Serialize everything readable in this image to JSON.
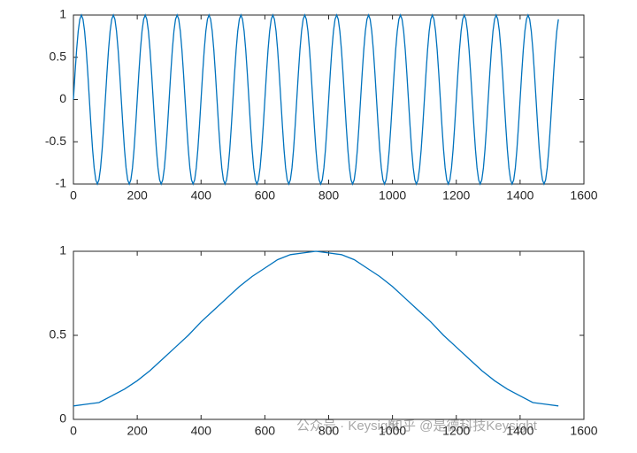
{
  "chart_data": [
    {
      "type": "line",
      "xlim": [
        0,
        1600
      ],
      "ylim": [
        -1,
        1
      ],
      "xticks": [
        0,
        200,
        400,
        600,
        800,
        1000,
        1200,
        1400,
        1600
      ],
      "yticks": [
        -1,
        -0.5,
        0,
        0.5,
        1
      ],
      "color": "#0072bd",
      "x": [
        0,
        5,
        10,
        15,
        20,
        25,
        30,
        35,
        40,
        45,
        50,
        55,
        60,
        65,
        70,
        75,
        80,
        85,
        90,
        95,
        100,
        105,
        110,
        115,
        120,
        125,
        130,
        135,
        140,
        145,
        150,
        155,
        160,
        165,
        170,
        175,
        180,
        185,
        190,
        195,
        200,
        205,
        210,
        215,
        220,
        225,
        230,
        235,
        240,
        245,
        250,
        255,
        260,
        265,
        270,
        275,
        280,
        285,
        290,
        295,
        300,
        305,
        310,
        315,
        320,
        325,
        330,
        335,
        340,
        345,
        350,
        355,
        360,
        365,
        370,
        375,
        380,
        385,
        390,
        395,
        400,
        405,
        410,
        415,
        420,
        425,
        430,
        435,
        440,
        445,
        450,
        455,
        460,
        465,
        470,
        475,
        480,
        485,
        490,
        495,
        500,
        505,
        510,
        515,
        520,
        525,
        530,
        535,
        540,
        545,
        550,
        555,
        560,
        565,
        570,
        575,
        580,
        585,
        590,
        595,
        600,
        605,
        610,
        615,
        620,
        625,
        630,
        635,
        640,
        645,
        650,
        655,
        660,
        665,
        670,
        675,
        680,
        685,
        690,
        695,
        700,
        705,
        710,
        715,
        720,
        725,
        730,
        735,
        740,
        745,
        750,
        755,
        760,
        765,
        770,
        775,
        780,
        785,
        790,
        795,
        800,
        805,
        810,
        815,
        820,
        825,
        830,
        835,
        840,
        845,
        850,
        855,
        860,
        865,
        870,
        875,
        880,
        885,
        890,
        895,
        900,
        905,
        910,
        915,
        920,
        925,
        930,
        935,
        940,
        945,
        950,
        955,
        960,
        965,
        970,
        975,
        980,
        985,
        990,
        995,
        1000,
        1005,
        1010,
        1015,
        1020,
        1025,
        1030,
        1035,
        1040,
        1045,
        1050,
        1055,
        1060,
        1065,
        1070,
        1075,
        1080,
        1085,
        1090,
        1095,
        1100,
        1105,
        1110,
        1115,
        1120,
        1125,
        1130,
        1135,
        1140,
        1145,
        1150,
        1155,
        1160,
        1165,
        1170,
        1175,
        1180,
        1185,
        1190,
        1195,
        1200,
        1205,
        1210,
        1215,
        1220,
        1225,
        1230,
        1235,
        1240,
        1245,
        1250,
        1255,
        1260,
        1265,
        1270,
        1275,
        1280,
        1285,
        1290,
        1295,
        1300,
        1305,
        1310,
        1315,
        1320,
        1325,
        1330,
        1335,
        1340,
        1345,
        1350,
        1355,
        1360,
        1365,
        1370,
        1375,
        1380,
        1385,
        1390,
        1395,
        1400,
        1405,
        1410,
        1415,
        1420,
        1425,
        1430,
        1435,
        1440,
        1445,
        1450,
        1455,
        1460,
        1465,
        1470,
        1475,
        1480,
        1485,
        1490,
        1495,
        1500,
        1505,
        1510,
        1515,
        1520
      ],
      "series": [
        {
          "values": [
            0,
            0.31,
            0.59,
            0.81,
            0.95,
            1,
            0.95,
            0.81,
            0.59,
            0.31,
            0,
            -0.31,
            -0.59,
            -0.81,
            -0.95,
            -1,
            -0.95,
            -0.81,
            -0.59,
            -0.31,
            0,
            0.31,
            0.59,
            0.81,
            0.95,
            1,
            0.95,
            0.81,
            0.59,
            0.31,
            0,
            -0.31,
            -0.59,
            -0.81,
            -0.95,
            -1,
            -0.95,
            -0.81,
            -0.59,
            -0.31,
            0,
            0.31,
            0.59,
            0.81,
            0.95,
            1,
            0.95,
            0.81,
            0.59,
            0.31,
            0,
            -0.31,
            -0.59,
            -0.81,
            -0.95,
            -1,
            -0.95,
            -0.81,
            -0.59,
            -0.31,
            0,
            0.31,
            0.59,
            0.81,
            0.95,
            1,
            0.95,
            0.81,
            0.59,
            0.31,
            0,
            -0.31,
            -0.59,
            -0.81,
            -0.95,
            -1,
            -0.95,
            -0.81,
            -0.59,
            -0.31,
            0,
            0.31,
            0.59,
            0.81,
            0.95,
            1,
            0.95,
            0.81,
            0.59,
            0.31,
            0,
            -0.31,
            -0.59,
            -0.81,
            -0.95,
            -1,
            -0.95,
            -0.81,
            -0.59,
            -0.31,
            0,
            0.31,
            0.59,
            0.81,
            0.95,
            1,
            0.95,
            0.81,
            0.59,
            0.31,
            0,
            -0.31,
            -0.59,
            -0.81,
            -0.95,
            -1,
            -0.95,
            -0.81,
            -0.59,
            -0.31,
            0,
            0.31,
            0.59,
            0.81,
            0.95,
            1,
            0.95,
            0.81,
            0.59,
            0.31,
            0,
            -0.31,
            -0.59,
            -0.81,
            -0.95,
            -1,
            -0.95,
            -0.81,
            -0.59,
            -0.31,
            0,
            0.31,
            0.59,
            0.81,
            0.95,
            1,
            0.95,
            0.81,
            0.59,
            0.31,
            0,
            -0.31,
            -0.59,
            -0.81,
            -0.95,
            -1,
            -0.95,
            -0.81,
            -0.59,
            -0.31,
            0,
            0.31,
            0.59,
            0.81,
            0.95,
            1,
            0.95,
            0.81,
            0.59,
            0.31,
            0,
            -0.31,
            -0.59,
            -0.81,
            -0.95,
            -1,
            -0.95,
            -0.81,
            -0.59,
            -0.31,
            0,
            0.31,
            0.59,
            0.81,
            0.95,
            1,
            0.95,
            0.81,
            0.59,
            0.31,
            0,
            -0.31,
            -0.59,
            -0.81,
            -0.95,
            -1,
            -0.95,
            -0.81,
            -0.59,
            -0.31,
            0,
            0.31,
            0.59,
            0.81,
            0.95,
            1,
            0.95,
            0.81,
            0.59,
            0.31,
            0,
            -0.31,
            -0.59,
            -0.81,
            -0.95,
            -1,
            -0.95,
            -0.81,
            -0.59,
            -0.31,
            0,
            0.31,
            0.59,
            0.81,
            0.95,
            1,
            0.95,
            0.81,
            0.59,
            0.31,
            0,
            -0.31,
            -0.59,
            -0.81,
            -0.95,
            -1,
            -0.95,
            -0.81,
            -0.59,
            -0.31,
            0,
            0.31,
            0.59,
            0.81,
            0.95,
            1,
            0.95,
            0.81,
            0.59,
            0.31,
            0,
            -0.31,
            -0.59,
            -0.81,
            -0.95,
            -1,
            -0.95,
            -0.81,
            -0.59,
            -0.31,
            0,
            0.31,
            0.59,
            0.81,
            0.95,
            1,
            0.95,
            0.81,
            0.59,
            0.31,
            0,
            -0.31,
            -0.59,
            -0.81,
            -0.95,
            -1,
            -0.95,
            -0.81,
            -0.59,
            -0.31,
            0,
            0.31,
            0.59,
            0.81,
            0.95,
            1,
            0.95,
            0.81,
            0.59,
            0.31,
            0,
            -0.31,
            -0.59,
            -0.81,
            -0.95,
            -1,
            -0.95,
            -0.81,
            -0.59,
            -0.31,
            0,
            0.31,
            0.59,
            0.81,
            0.95
          ]
        }
      ]
    },
    {
      "type": "line",
      "xlim": [
        0,
        1600
      ],
      "ylim": [
        0,
        1
      ],
      "xticks": [
        0,
        200,
        400,
        600,
        800,
        1000,
        1200,
        1400,
        1600
      ],
      "yticks": [
        0,
        0.5,
        1
      ],
      "color": "#0072bd",
      "x": [
        0,
        40,
        80,
        120,
        160,
        200,
        240,
        280,
        320,
        360,
        400,
        440,
        480,
        520,
        560,
        600,
        640,
        680,
        720,
        760,
        800,
        840,
        880,
        920,
        960,
        1000,
        1040,
        1080,
        1120,
        1160,
        1200,
        1240,
        1280,
        1320,
        1360,
        1400,
        1440,
        1480,
        1520
      ],
      "series": [
        {
          "values": [
            0.08,
            0.09,
            0.1,
            0.14,
            0.18,
            0.23,
            0.29,
            0.36,
            0.43,
            0.5,
            0.58,
            0.65,
            0.72,
            0.79,
            0.85,
            0.9,
            0.95,
            0.98,
            0.99,
            1.0,
            0.99,
            0.98,
            0.95,
            0.9,
            0.85,
            0.79,
            0.72,
            0.65,
            0.58,
            0.5,
            0.43,
            0.36,
            0.29,
            0.23,
            0.18,
            0.14,
            0.1,
            0.09,
            0.08
          ]
        }
      ]
    }
  ],
  "watermark": [
    "公众号 · Keysight",
    "知乎 @是德科技Keysight"
  ]
}
